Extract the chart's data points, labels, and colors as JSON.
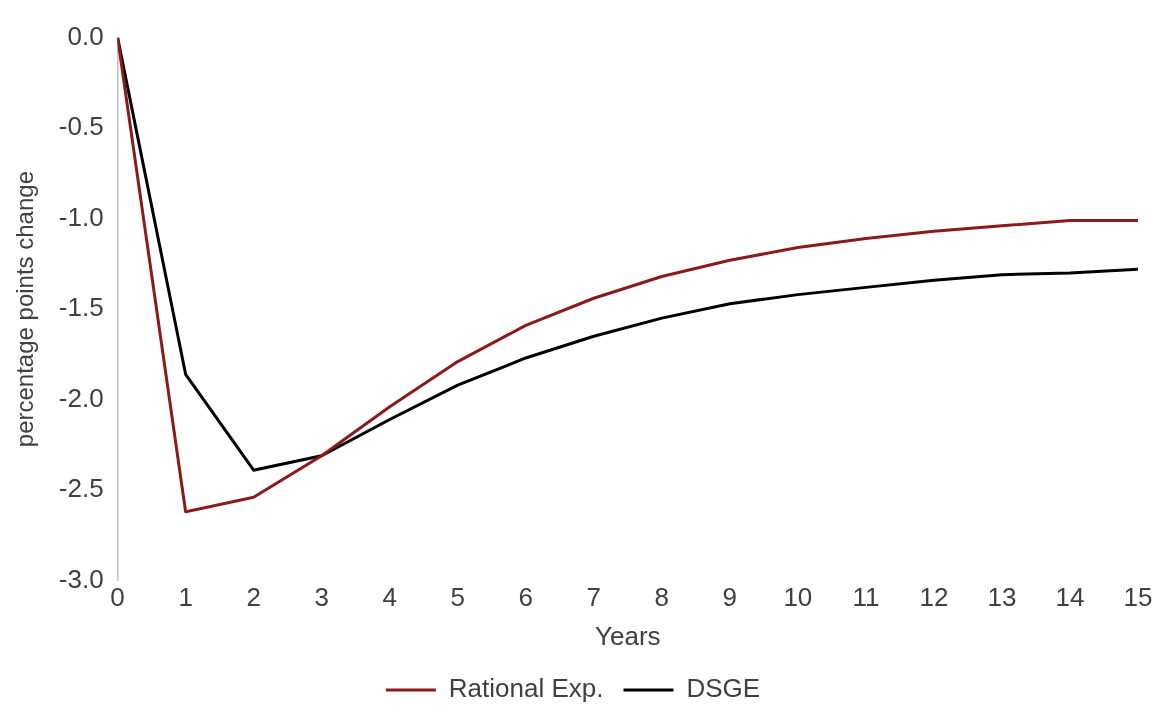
{
  "chart_data": {
    "type": "line",
    "xlabel": "Years",
    "ylabel": "percentage points change",
    "x": [
      0,
      1,
      2,
      3,
      4,
      5,
      6,
      7,
      8,
      9,
      10,
      11,
      12,
      13,
      14,
      15
    ],
    "xlim": [
      0,
      15
    ],
    "xticks": [
      0,
      1,
      2,
      3,
      4,
      5,
      6,
      7,
      8,
      9,
      10,
      11,
      12,
      13,
      14,
      15
    ],
    "ylim": [
      -3,
      0
    ],
    "yticks": [
      {
        "value": -3,
        "label": "-3.0"
      },
      {
        "value": -2.5,
        "label": "-2.5"
      },
      {
        "value": -2,
        "label": "-2.0"
      },
      {
        "value": -1.5,
        "label": "-1.5"
      },
      {
        "value": -1,
        "label": "-1.0"
      },
      {
        "value": -0.5,
        "label": "-0.5"
      },
      {
        "value": 0,
        "label": "0.0"
      }
    ],
    "grid": false,
    "legend": "bottom",
    "marker": "none",
    "line_style": "solid",
    "series": [
      {
        "name": "Rational Exp.",
        "color": "#8b1a1a",
        "values": [
          0,
          -2.62,
          -2.54,
          -2.31,
          -2.04,
          -1.79,
          -1.59,
          -1.44,
          -1.32,
          -1.23,
          -1.16,
          -1.11,
          -1.07,
          -1.04,
          -1.01,
          -1.01
        ]
      },
      {
        "name": "DSGE",
        "color": "#000000",
        "values": [
          0,
          -1.86,
          -2.39,
          -2.31,
          -2.11,
          -1.92,
          -1.77,
          -1.65,
          -1.55,
          -1.47,
          -1.42,
          -1.38,
          -1.34,
          -1.31,
          -1.3,
          -1.28
        ]
      }
    ]
  }
}
